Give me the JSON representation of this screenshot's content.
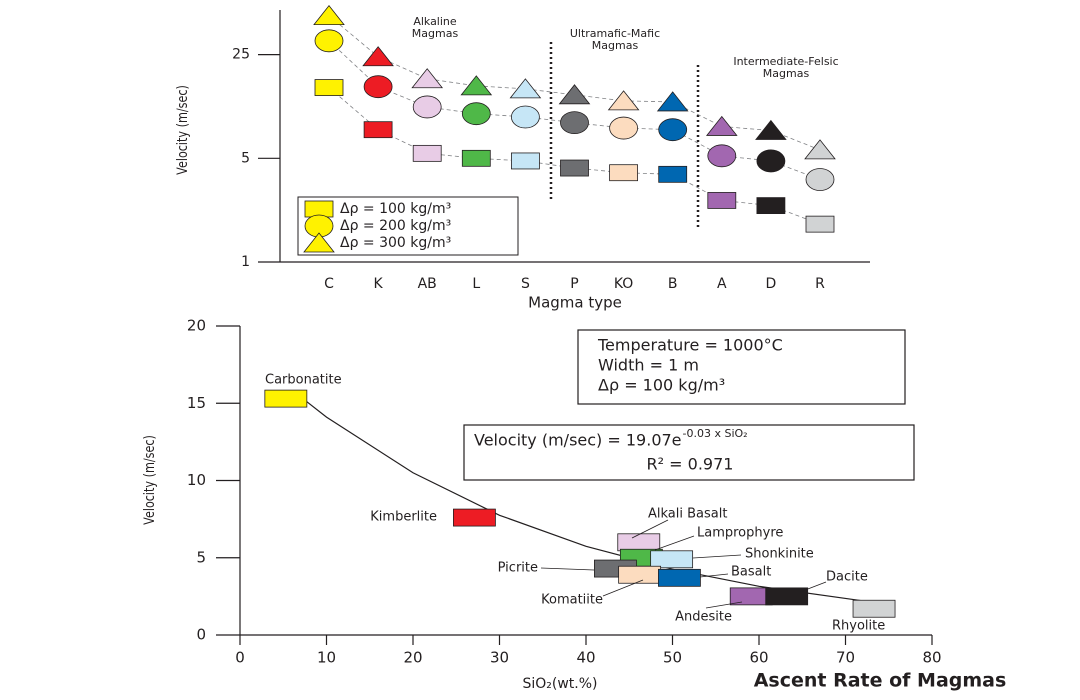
{
  "figure_title": "Ascent Rate of Magmas",
  "chart_data": [
    {
      "type": "scatter",
      "y_label": "Velocity (m/sec)",
      "x_label": "Magma type",
      "categories": [
        "C",
        "K",
        "AB",
        "L",
        "S",
        "P",
        "KO",
        "B",
        "A",
        "D",
        "R"
      ],
      "point_colors": [
        "#fff200",
        "#ed1c24",
        "#e8cce6",
        "#4fb848",
        "#c6e6f6",
        "#6d6e71",
        "#fcdcbf",
        "#0067b1",
        "#a267b0",
        "#231f20",
        "#d1d3d4"
      ],
      "log_y": true,
      "ylim": [
        1,
        50
      ],
      "yticks": [
        1,
        5,
        25
      ],
      "legend": "bottom-left",
      "series": [
        {
          "name": "Δρ = 100 kg/m³",
          "marker": "square",
          "color": "#fff200",
          "values": [
            15,
            7.8,
            5.4,
            5.0,
            4.8,
            4.3,
            4.0,
            3.9,
            2.6,
            2.4,
            1.8
          ]
        },
        {
          "name": "Δρ = 200 kg/m³",
          "marker": "circle",
          "color": "#fff200",
          "values": [
            31,
            15.2,
            11.1,
            10.0,
            9.5,
            8.7,
            8.0,
            7.8,
            5.2,
            4.8,
            3.6
          ]
        },
        {
          "name": "Δρ = 300 kg/m³",
          "marker": "triangle",
          "color": "#fff200",
          "values": [
            45.8,
            24.2,
            17.2,
            15.4,
            14.7,
            13.4,
            12.2,
            12.0,
            8.2,
            7.7,
            5.7
          ]
        }
      ],
      "annotations": [
        [
          "Alkaline",
          "Magmas"
        ],
        [
          "Ultramafic-Mafic",
          "Magmas"
        ],
        [
          "Intermediate-Felsic",
          "Magmas"
        ]
      ]
    },
    {
      "type": "scatter",
      "y_label": "Velocity (m/sec)",
      "x_label": "SiO₂(wt.%)",
      "labels": [
        "Carbonatite",
        "Kimberlite",
        "Alkali Basalt",
        "Lamprophyre",
        "Shonkinite",
        "Picrite",
        "Komatiite",
        "Basalt",
        "Andesite",
        "Dacite",
        "Rhyolite"
      ],
      "x": [
        5.3,
        27.1,
        46.1,
        46.4,
        49.9,
        43.4,
        46.2,
        50.8,
        59.1,
        63.2,
        73.3
      ],
      "values": [
        15.3,
        7.6,
        6.0,
        5.0,
        4.9,
        4.3,
        3.9,
        3.7,
        2.5,
        2.5,
        1.7
      ],
      "colors": [
        "#fff200",
        "#ed1c24",
        "#e8cce6",
        "#4fb848",
        "#c6e6f6",
        "#6d6e71",
        "#fcdcbf",
        "#0067b1",
        "#a267b0",
        "#231f20",
        "#d1d3d4"
      ],
      "xlim": [
        0,
        80
      ],
      "ylim": [
        0,
        20
      ],
      "xticks": [
        0,
        10,
        20,
        30,
        40,
        50,
        60,
        70,
        80
      ],
      "yticks": [
        0,
        5,
        10,
        15,
        20
      ],
      "fit_line": {
        "x": [
          7.5,
          10,
          20,
          30,
          40,
          50,
          60,
          73
        ],
        "values": [
          15.2,
          14.1,
          10.5,
          7.75,
          5.74,
          4.26,
          3.15,
          2.13
        ]
      },
      "conditions": [
        "Temperature = 1000°C",
        "Width = 1 m",
        "Δρ = 100 kg/m³"
      ],
      "equation": "Velocity (m/sec) = 19.07e",
      "equation_exponent": "-0.03 x SiO₂",
      "r_squared": "R² = 0.971"
    }
  ]
}
